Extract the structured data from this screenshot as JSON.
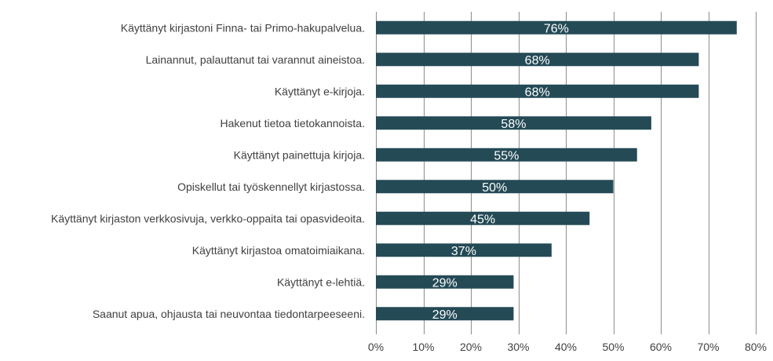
{
  "chart_data": {
    "type": "bar",
    "orientation": "horizontal",
    "categories": [
      "Käyttänyt kirjastoni Finna- tai Primo-hakupalvelua.",
      "Lainannut, palauttanut tai varannut aineistoa.",
      "Käyttänyt e-kirjoja.",
      "Hakenut tietoa tietokannoista.",
      "Käyttänyt painettuja kirjoja.",
      "Opiskellut tai työskennellyt kirjastossa.",
      "Käyttänyt kirjaston verkkosivuja, verkko-oppaita tai opasvideoita.",
      "Käyttänyt kirjastoa omatoimiaikana.",
      "Käyttänyt e-lehtiä.",
      "Saanut apua, ohjausta tai neuvontaa tiedontarpeeseeni."
    ],
    "values": [
      76,
      68,
      68,
      58,
      55,
      50,
      45,
      37,
      29,
      29
    ],
    "data_labels": [
      "76%",
      "68%",
      "68%",
      "58%",
      "55%",
      "50%",
      "45%",
      "37%",
      "29%",
      "29%"
    ],
    "xlim": [
      0,
      80
    ],
    "x_ticks": [
      0,
      10,
      20,
      30,
      40,
      50,
      60,
      70,
      80
    ],
    "x_tick_labels": [
      "0%",
      "10%",
      "20%",
      "30%",
      "40%",
      "50%",
      "60%",
      "70%",
      "80%"
    ],
    "title": "",
    "xlabel": "",
    "ylabel": "",
    "grid": "vertical",
    "legend": "none",
    "bar_color": "#244A56",
    "grid_color": "#8C8C8C",
    "label_color": "#404040",
    "data_label_color": "#FFFFFF"
  }
}
